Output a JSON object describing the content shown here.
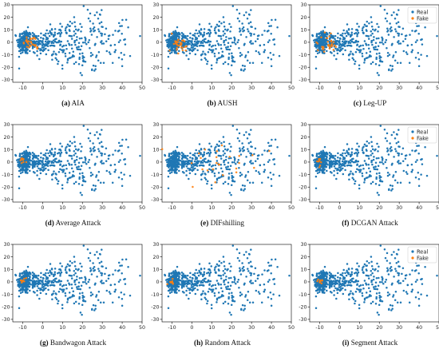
{
  "colors": {
    "real": "#1f77b4",
    "fake": "#ff7f0e",
    "axis": "#000000",
    "page_bg": "#ffffff"
  },
  "chart_data": [
    {
      "type": "scatter",
      "label": "(a)",
      "caption": "AIA",
      "xlim": [
        -15,
        50
      ],
      "ylim": [
        -32,
        30
      ],
      "xticks": [
        -10,
        0,
        10,
        20,
        30,
        40,
        50
      ],
      "yticks": [
        -30,
        -20,
        -10,
        0,
        10,
        20,
        30
      ],
      "legend": null,
      "fake_cluster": {
        "center": [
          -6,
          -1
        ],
        "spread": [
          2.2,
          3
        ],
        "count": 30
      }
    },
    {
      "type": "scatter",
      "label": "(b)",
      "caption": "AUSH",
      "xlim": [
        -15,
        50
      ],
      "ylim": [
        -32,
        30
      ],
      "xticks": [
        -10,
        0,
        10,
        20,
        30,
        40,
        50
      ],
      "yticks": [
        -30,
        -20,
        -10,
        0,
        10,
        20,
        30
      ],
      "legend": null,
      "fake_cluster": {
        "center": [
          -6,
          -1
        ],
        "spread": [
          2.2,
          3
        ],
        "count": 30
      }
    },
    {
      "type": "scatter",
      "label": "(c)",
      "caption": "Leg-UP",
      "xlim": [
        -15,
        50
      ],
      "ylim": [
        -32,
        30
      ],
      "xticks": [
        -10,
        0,
        10,
        20,
        30,
        40,
        50
      ],
      "yticks": [
        -30,
        -20,
        -10,
        0,
        10,
        20,
        30
      ],
      "legend": {
        "position": "top-right",
        "entries": [
          "Real",
          "Fake"
        ]
      },
      "fake_cluster": {
        "center": [
          -6,
          -1
        ],
        "spread": [
          2.2,
          3
        ],
        "count": 30
      }
    },
    {
      "type": "scatter",
      "label": "(d)",
      "caption": "Average Attack",
      "xlim": [
        -15,
        50
      ],
      "ylim": [
        -32,
        30
      ],
      "xticks": [
        -10,
        0,
        10,
        20,
        30,
        40,
        50
      ],
      "yticks": [
        -30,
        -20,
        -10,
        0,
        10,
        20,
        30
      ],
      "legend": null,
      "fake_cluster": {
        "center": [
          -10,
          1
        ],
        "spread": [
          0.8,
          1.5
        ],
        "count": 8
      }
    },
    {
      "type": "scatter",
      "label": "(e)",
      "caption": "DIFshilling",
      "xlim": [
        -15,
        50
      ],
      "ylim": [
        -32,
        30
      ],
      "xticks": [
        -10,
        0,
        10,
        20,
        30,
        40,
        50
      ],
      "yticks": [
        -30,
        -20,
        -10,
        0,
        10,
        20,
        30
      ],
      "legend": null,
      "fake_cluster": {
        "center": [
          8,
          -2
        ],
        "spread": [
          12,
          8
        ],
        "count": 25
      }
    },
    {
      "type": "scatter",
      "label": "(f)",
      "caption": "DCGAN Attack",
      "xlim": [
        -15,
        50
      ],
      "ylim": [
        -32,
        30
      ],
      "xticks": [
        -10,
        0,
        10,
        20,
        30,
        40,
        50
      ],
      "yticks": [
        -30,
        -20,
        -10,
        0,
        10,
        20,
        30
      ],
      "legend": {
        "position": "top-right",
        "entries": [
          "Real",
          "Fake"
        ]
      },
      "fake_cluster": {
        "center": [
          -10,
          1
        ],
        "spread": [
          0.8,
          1.5
        ],
        "count": 8
      }
    },
    {
      "type": "scatter",
      "label": "(g)",
      "caption": "Bandwagon Attack",
      "xlim": [
        -15,
        50
      ],
      "ylim": [
        -32,
        30
      ],
      "xticks": [
        -10,
        0,
        10,
        20,
        30,
        40,
        50
      ],
      "yticks": [
        -30,
        -20,
        -10,
        0,
        10,
        20,
        30
      ],
      "legend": null,
      "fake_cluster": {
        "center": [
          -10,
          1
        ],
        "spread": [
          0.8,
          1.5
        ],
        "count": 8
      }
    },
    {
      "type": "scatter",
      "label": "(h)",
      "caption": "Random Attack",
      "xlim": [
        -15,
        50
      ],
      "ylim": [
        -32,
        30
      ],
      "xticks": [
        -10,
        0,
        10,
        20,
        30,
        40,
        50
      ],
      "yticks": [
        -30,
        -20,
        -10,
        0,
        10,
        20,
        30
      ],
      "legend": null,
      "fake_cluster": {
        "center": [
          -10,
          1
        ],
        "spread": [
          0.8,
          1.5
        ],
        "count": 8
      }
    },
    {
      "type": "scatter",
      "label": "(i)",
      "caption": "Segment Attack",
      "xlim": [
        -15,
        50
      ],
      "ylim": [
        -32,
        30
      ],
      "xticks": [
        -10,
        0,
        10,
        20,
        30,
        40,
        50
      ],
      "yticks": [
        -30,
        -20,
        -10,
        0,
        10,
        20,
        30
      ],
      "legend": {
        "position": "top-right",
        "entries": [
          "Real",
          "Fake"
        ]
      },
      "fake_cluster": {
        "center": [
          -10,
          1
        ],
        "spread": [
          0.8,
          1.5
        ],
        "count": 8
      }
    }
  ]
}
